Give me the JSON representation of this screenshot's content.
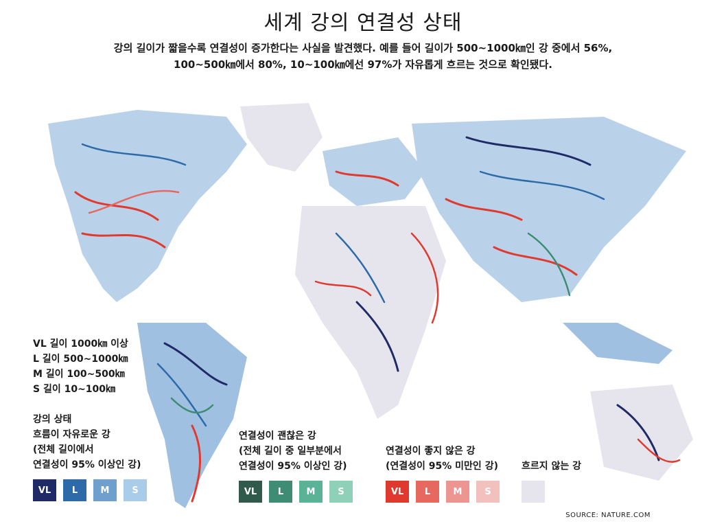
{
  "title": "세계 강의 연결성 상태",
  "subtitle_line1": "강의 길이가 짧을수록 연결성이 증가한다는 사실을 발견했다. 예를 들어 길이가 500~1000㎞인 강 중에서 56%,",
  "subtitle_line2": "100~500㎞에서 80%, 10~100㎞에선 97%가 자유롭게 흐르는 것으로 확인됐다.",
  "size_legend": [
    "VL 길이 1000㎞ 이상",
    "L 길이 500~1000㎞",
    "M 길이 100~500㎞",
    "S 길이 10~100㎞"
  ],
  "status_groups": [
    {
      "lines": [
        "강의 상태",
        "흐름이 자유로운 강",
        "(전체 길이에서",
        "연결성이 95% 이상인 강)"
      ],
      "swatches": [
        {
          "label": "VL",
          "color": "#1f2a66"
        },
        {
          "label": "L",
          "color": "#2c6aa8"
        },
        {
          "label": "M",
          "color": "#6f9fcd"
        },
        {
          "label": "S",
          "color": "#a9cde8"
        }
      ]
    },
    {
      "lines": [
        "연결성이 괜찮은 강",
        "(전체 길이 중 일부분에서",
        "연결성이 95% 이상인 강)"
      ],
      "swatches": [
        {
          "label": "VL",
          "color": "#2f5a4c"
        },
        {
          "label": "L",
          "color": "#3f8c74"
        },
        {
          "label": "M",
          "color": "#59b394"
        },
        {
          "label": "S",
          "color": "#8fd0b8"
        }
      ]
    },
    {
      "lines": [
        "연결성이 좋지 않은 강",
        "(연결성이 95% 미만인 강)"
      ],
      "swatches": [
        {
          "label": "VL",
          "color": "#e03a2f"
        },
        {
          "label": "L",
          "color": "#e7685f"
        },
        {
          "label": "M",
          "color": "#ec9591"
        },
        {
          "label": "S",
          "color": "#f2c0bd"
        }
      ]
    },
    {
      "lines": [
        "흐르지 않는 강"
      ],
      "swatches": [
        {
          "label": "",
          "color": "#e6e4ec"
        }
      ]
    }
  ],
  "source": "SOURCE: NATURE.COM",
  "map_colors": {
    "land_bg": "#e7e4ec",
    "free_flowing": "#2c6aa8",
    "good": "#3f8c74",
    "poor": "#e03a2f",
    "light": "#a9cde8"
  }
}
